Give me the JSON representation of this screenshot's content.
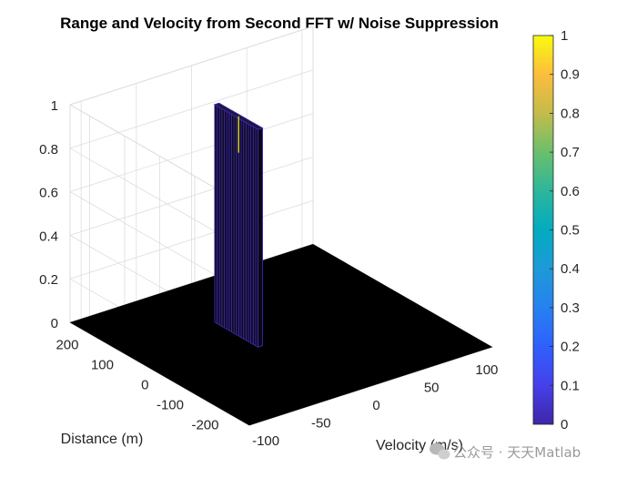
{
  "chart_data": {
    "type": "surface",
    "title": "Range and Velocity from Second FFT w/ Noise Suppression",
    "xlabel": "Velocity (m/s)",
    "ylabel": "Distance (m)",
    "zlabel": "",
    "x_ticks": [
      "-100",
      "-50",
      "0",
      "50",
      "100"
    ],
    "y_ticks": [
      "-200",
      "-100",
      "0",
      "100",
      "200"
    ],
    "z_ticks": [
      "0",
      "0.2",
      "0.4",
      "0.6",
      "0.8",
      "1"
    ],
    "xlim": [
      -110,
      110
    ],
    "ylim": [
      -256,
      256
    ],
    "zlim": [
      0,
      1
    ],
    "grid": true,
    "surface_base_value": 0,
    "peak": {
      "velocity_range": [
        -26,
        -22
      ],
      "distance_range": [
        -16,
        108
      ],
      "value": 1
    },
    "colorbar": {
      "ticks": [
        "0",
        "0.1",
        "0.2",
        "0.3",
        "0.4",
        "0.5",
        "0.6",
        "0.7",
        "0.8",
        "0.9",
        "1"
      ],
      "colormap": "parula",
      "range": [
        0,
        1
      ]
    },
    "colors": {
      "surface": "#000000",
      "peak_edge": "#3e26a8",
      "peak_top": "#f9fb0e",
      "grid": "#dddddd",
      "axis": "#262626"
    }
  },
  "watermark": "公众号 · 天天Matlab",
  "watermark_icon": "wechat-icon"
}
